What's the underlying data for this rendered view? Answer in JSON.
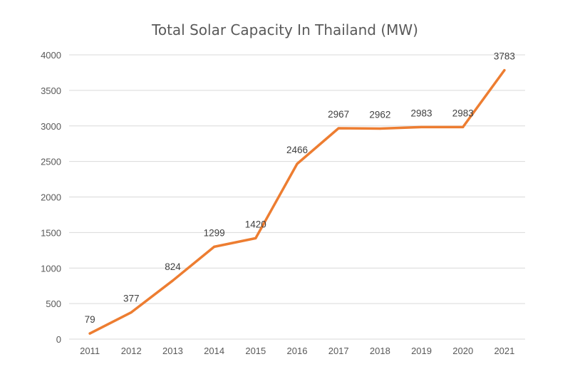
{
  "chart_data": {
    "type": "line",
    "title": "Total Solar Capacity In Thailand (MW)",
    "categories": [
      "2011",
      "2012",
      "2013",
      "2014",
      "2015",
      "2016",
      "2017",
      "2018",
      "2019",
      "2020",
      "2021"
    ],
    "series": [
      {
        "values": [
          79,
          377,
          824,
          1299,
          1420,
          2466,
          2967,
          2962,
          2983,
          2983,
          3783
        ],
        "data_labels": [
          "79",
          "377",
          "824",
          "1299",
          "1420",
          "2466",
          "2967",
          "2962",
          "2983",
          "2983",
          "3783"
        ],
        "color": "#ED7D31"
      }
    ],
    "ylim": [
      0,
      4000
    ],
    "yticks": [
      0,
      500,
      1000,
      1500,
      2000,
      2500,
      3000,
      3500,
      4000
    ],
    "ytick_labels": [
      "0",
      "500",
      "1000",
      "1500",
      "2000",
      "2500",
      "3000",
      "3500",
      "4000"
    ],
    "grid": true,
    "legend": "none",
    "colors": {
      "grid": "#D9D9D9",
      "tick_text": "#595959",
      "label_text": "#404040",
      "title_text": "#595959"
    }
  }
}
